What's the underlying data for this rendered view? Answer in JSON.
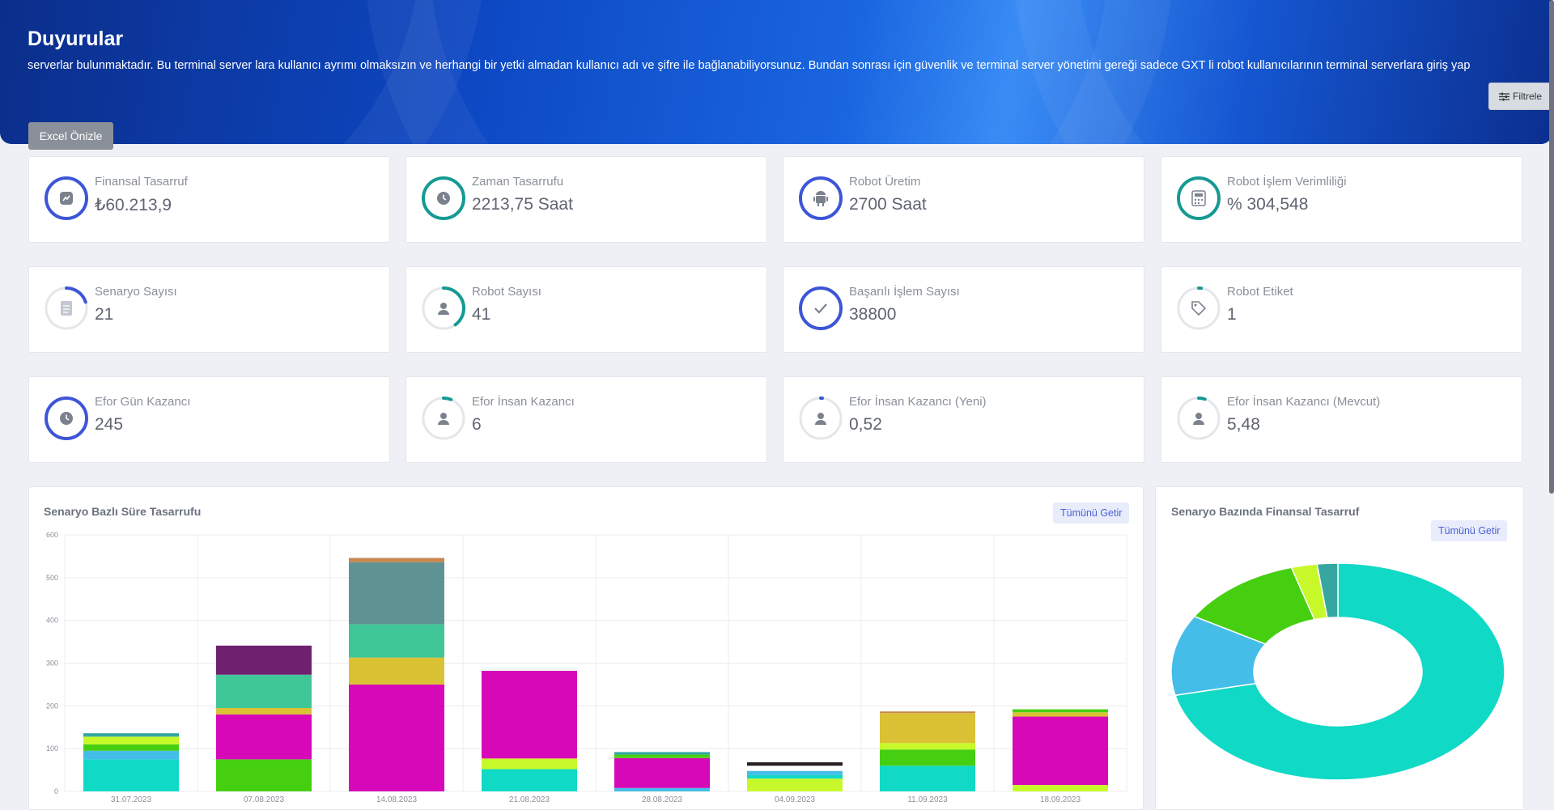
{
  "banner": {
    "title": "Duyurular",
    "text": "serverlar bulunmaktadır. Bu terminal server lara kullanıcı ayrımı olmaksızın ve herhangi bir yetki almadan kullanıcı adı ve şifre ile bağlanabiliyorsunuz. Bundan sonrası için güvenlik ve terminal server yönetimi gereği sadece GXT li robot kullanıcılarının terminal serverlara giriş yap"
  },
  "toolbar": {
    "filter_label": "Filtrele",
    "excel_label": "Excel Önizle"
  },
  "cards": [
    {
      "label": "Finansal Tasarruf",
      "value": "₺60.213,9",
      "icon": "trend-icon",
      "color": "#3d55d6",
      "fill": 1.0
    },
    {
      "label": "Zaman Tasarrufu",
      "value": "2213,75 Saat",
      "icon": "clock-icon",
      "color": "#159a93",
      "fill": 1.0
    },
    {
      "label": "Robot Üretim",
      "value": "2700 Saat",
      "icon": "android-icon",
      "color": "#3d55d6",
      "fill": 1.0
    },
    {
      "label": "Robot İşlem Verimliliği",
      "value": "% 304,548",
      "icon": "calculator-icon",
      "color": "#159a93",
      "fill": 1.0
    },
    {
      "label": "Senaryo Sayısı",
      "value": "21",
      "icon": "document-icon",
      "color": "#3d55d6",
      "fill": 0.2
    },
    {
      "label": "Robot Sayısı",
      "value": "41",
      "icon": "user-icon",
      "color": "#159a93",
      "fill": 0.4
    },
    {
      "label": "Başarılı İşlem Sayısı",
      "value": "38800",
      "icon": "check-icon",
      "color": "#3d55d6",
      "fill": 1.0
    },
    {
      "label": "Robot Etiket",
      "value": "1",
      "icon": "tag-icon",
      "color": "#159a93",
      "fill": 0.02
    },
    {
      "label": "Efor Gün Kazancı",
      "value": "245",
      "icon": "clock-icon",
      "color": "#3d55d6",
      "fill": 1.0
    },
    {
      "label": "Efor İnsan Kazancı",
      "value": "6",
      "icon": "user-icon",
      "color": "#159a93",
      "fill": 0.06
    },
    {
      "label": "Efor İnsan Kazancı (Yeni)",
      "value": "0,52",
      "icon": "user-icon",
      "color": "#3d55d6",
      "fill": 0.01
    },
    {
      "label": "Efor İnsan Kazancı (Mevcut)",
      "value": "5,48",
      "icon": "user-icon",
      "color": "#159a93",
      "fill": 0.05
    }
  ],
  "bar_panel": {
    "title": "Senaryo Bazlı Süre Tasarrufu",
    "button": "Tümünü Getir"
  },
  "donut_panel": {
    "title": "Senaryo Bazında Finansal Tasarruf",
    "button": "Tümünü Getir"
  },
  "chart_data": [
    {
      "type": "bar",
      "stacked": true,
      "ylim": [
        0,
        600
      ],
      "yticks": [
        0,
        100,
        200,
        300,
        400,
        500,
        600
      ],
      "categories": [
        "31.07.2023",
        "07.08.2023",
        "14.08.2023",
        "21.08.2023",
        "28.08.2023",
        "04.09.2023",
        "11.09.2023",
        "18.09.2023"
      ],
      "bars": [
        [
          {
            "v": 75,
            "c": "#10d9c5"
          },
          {
            "v": 20,
            "c": "#45bde9"
          },
          {
            "v": 15,
            "c": "#46cf11"
          },
          {
            "v": 18,
            "c": "#c7f92a"
          },
          {
            "v": 8,
            "c": "#35a7a0"
          }
        ],
        [
          {
            "v": 75,
            "c": "#46cf11"
          },
          {
            "v": 105,
            "c": "#d608b8"
          },
          {
            "v": 15,
            "c": "#dbc235"
          },
          {
            "v": 78,
            "c": "#40c797"
          },
          {
            "v": 68,
            "c": "#6f2170"
          }
        ],
        [
          {
            "v": 250,
            "c": "#d608b8"
          },
          {
            "v": 63,
            "c": "#dbc235"
          },
          {
            "v": 78,
            "c": "#40c797"
          },
          {
            "v": 145,
            "c": "#5f9293"
          },
          {
            "v": 10,
            "c": "#c68751"
          }
        ],
        [
          {
            "v": 52,
            "c": "#10d9c5"
          },
          {
            "v": 25,
            "c": "#c7f92a"
          },
          {
            "v": 205,
            "c": "#d608b8"
          },
          {
            "v": 8,
            "c": "#f0f7f7"
          }
        ],
        [
          {
            "v": 8,
            "c": "#45bde9"
          },
          {
            "v": 70,
            "c": "#d608b8"
          },
          {
            "v": 8,
            "c": "#46cf11"
          },
          {
            "v": 6,
            "c": "#35a7a0"
          }
        ],
        [
          {
            "v": 30,
            "c": "#c7f92a"
          },
          {
            "v": 8,
            "c": "#10d9c5"
          },
          {
            "v": 10,
            "c": "#45bde9"
          },
          {
            "v": 12,
            "c": "#ffffff"
          },
          {
            "v": 8,
            "c": "#2a1f1f"
          }
        ],
        [
          {
            "v": 60,
            "c": "#10d9c5"
          },
          {
            "v": 38,
            "c": "#46cf11"
          },
          {
            "v": 15,
            "c": "#c7f92a"
          },
          {
            "v": 70,
            "c": "#dbc235"
          },
          {
            "v": 4,
            "c": "#c68751"
          }
        ],
        [
          {
            "v": 15,
            "c": "#c7f92a"
          },
          {
            "v": 160,
            "c": "#d608b8"
          },
          {
            "v": 10,
            "c": "#dbc235"
          },
          {
            "v": 7,
            "c": "#46cf11"
          }
        ]
      ]
    },
    {
      "type": "pie",
      "donut": true,
      "slices": [
        {
          "v": 71.5,
          "c": "#10d9c5"
        },
        {
          "v": 12,
          "c": "#45bde9"
        },
        {
          "v": 12,
          "c": "#46cf11"
        },
        {
          "v": 2.5,
          "c": "#c7f92a"
        },
        {
          "v": 2,
          "c": "#35a7a0"
        }
      ]
    }
  ]
}
